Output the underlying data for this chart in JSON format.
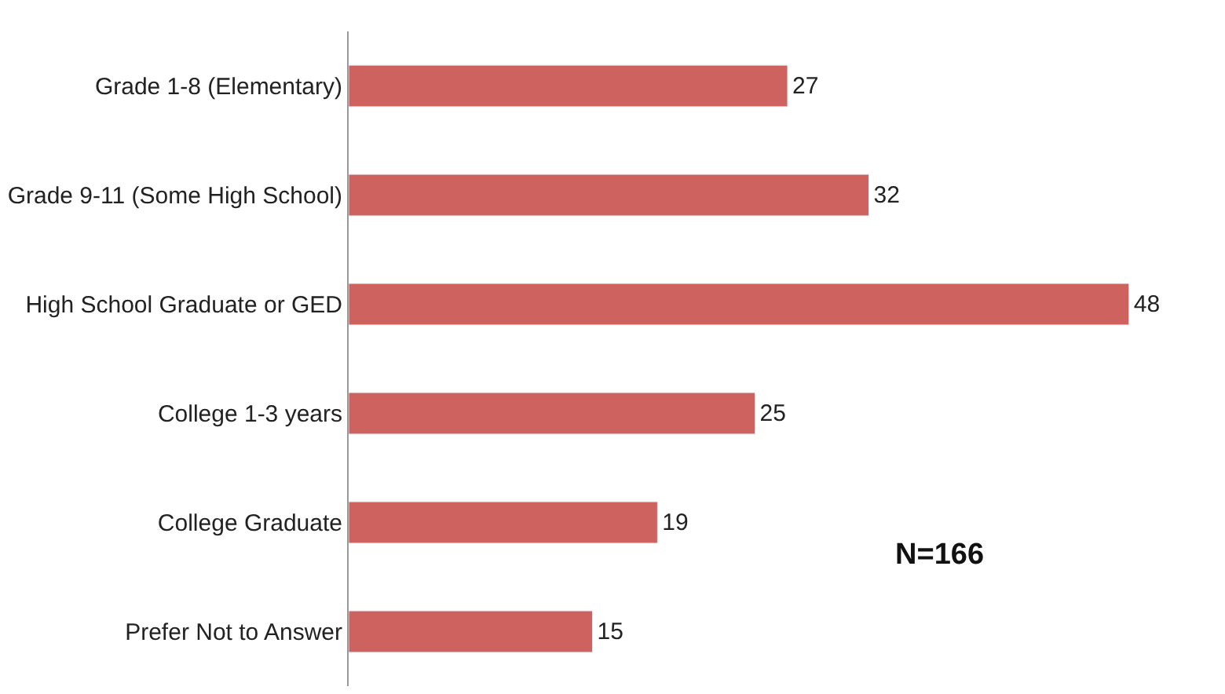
{
  "chart_data": {
    "type": "bar",
    "orientation": "horizontal",
    "categories": [
      "Grade 1-8 (Elementary)",
      "Grade 9-11 (Some High School)",
      "High School Graduate or GED",
      "College 1-3 years",
      "College Graduate",
      "Prefer Not to Answer"
    ],
    "values": [
      27,
      32,
      48,
      25,
      19,
      15
    ],
    "color": "#cd625e",
    "data_labels": true,
    "legend": false,
    "tick_labels": "y",
    "annotations": [
      "N=166"
    ]
  }
}
